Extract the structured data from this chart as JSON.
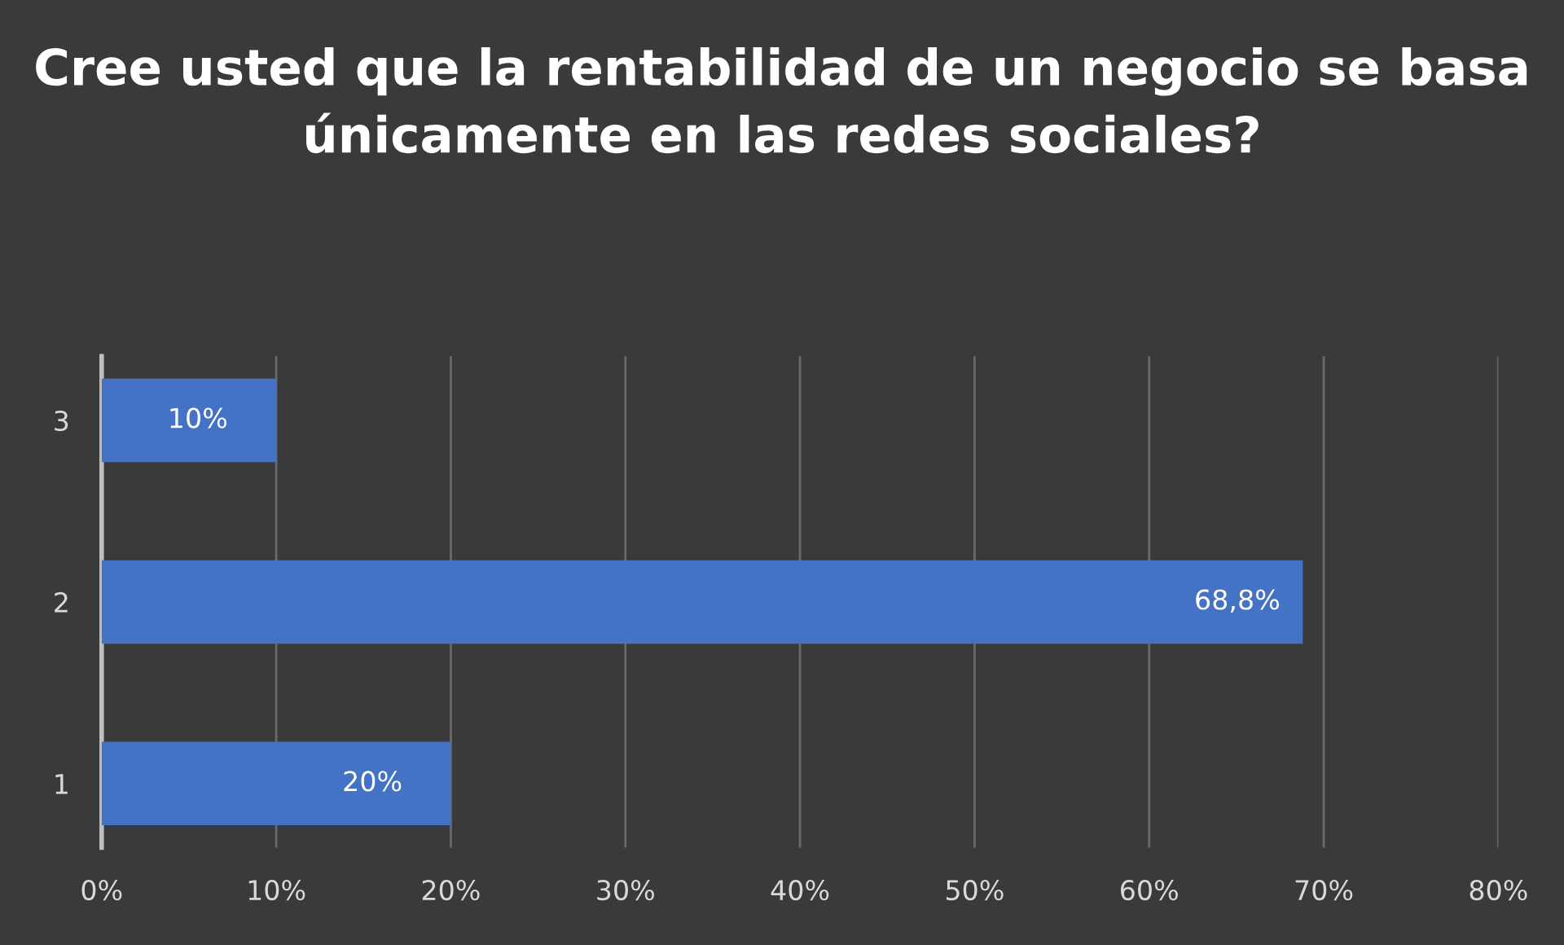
{
  "chart_data": {
    "type": "bar",
    "orientation": "horizontal",
    "title": "Cree usted que la rentabilidad de un negocio se basa únicamente en las redes sociales?",
    "categories": [
      "3",
      "2",
      "1"
    ],
    "values": [
      10,
      68.8,
      20
    ],
    "value_labels": [
      "10%",
      "68,8%",
      "20%"
    ],
    "color": "#4472c4",
    "xlim": [
      0,
      80
    ],
    "xticks": [
      {
        "value": 0,
        "label": "0%"
      },
      {
        "value": 10,
        "label": "10%"
      },
      {
        "value": 20,
        "label": "20%"
      },
      {
        "value": 30,
        "label": "30%"
      },
      {
        "value": 40,
        "label": "40%"
      },
      {
        "value": 50,
        "label": "50%"
      },
      {
        "value": 60,
        "label": "60%"
      },
      {
        "value": 70,
        "label": "70%"
      },
      {
        "value": 80,
        "label": "80%"
      }
    ],
    "grid": "x"
  }
}
